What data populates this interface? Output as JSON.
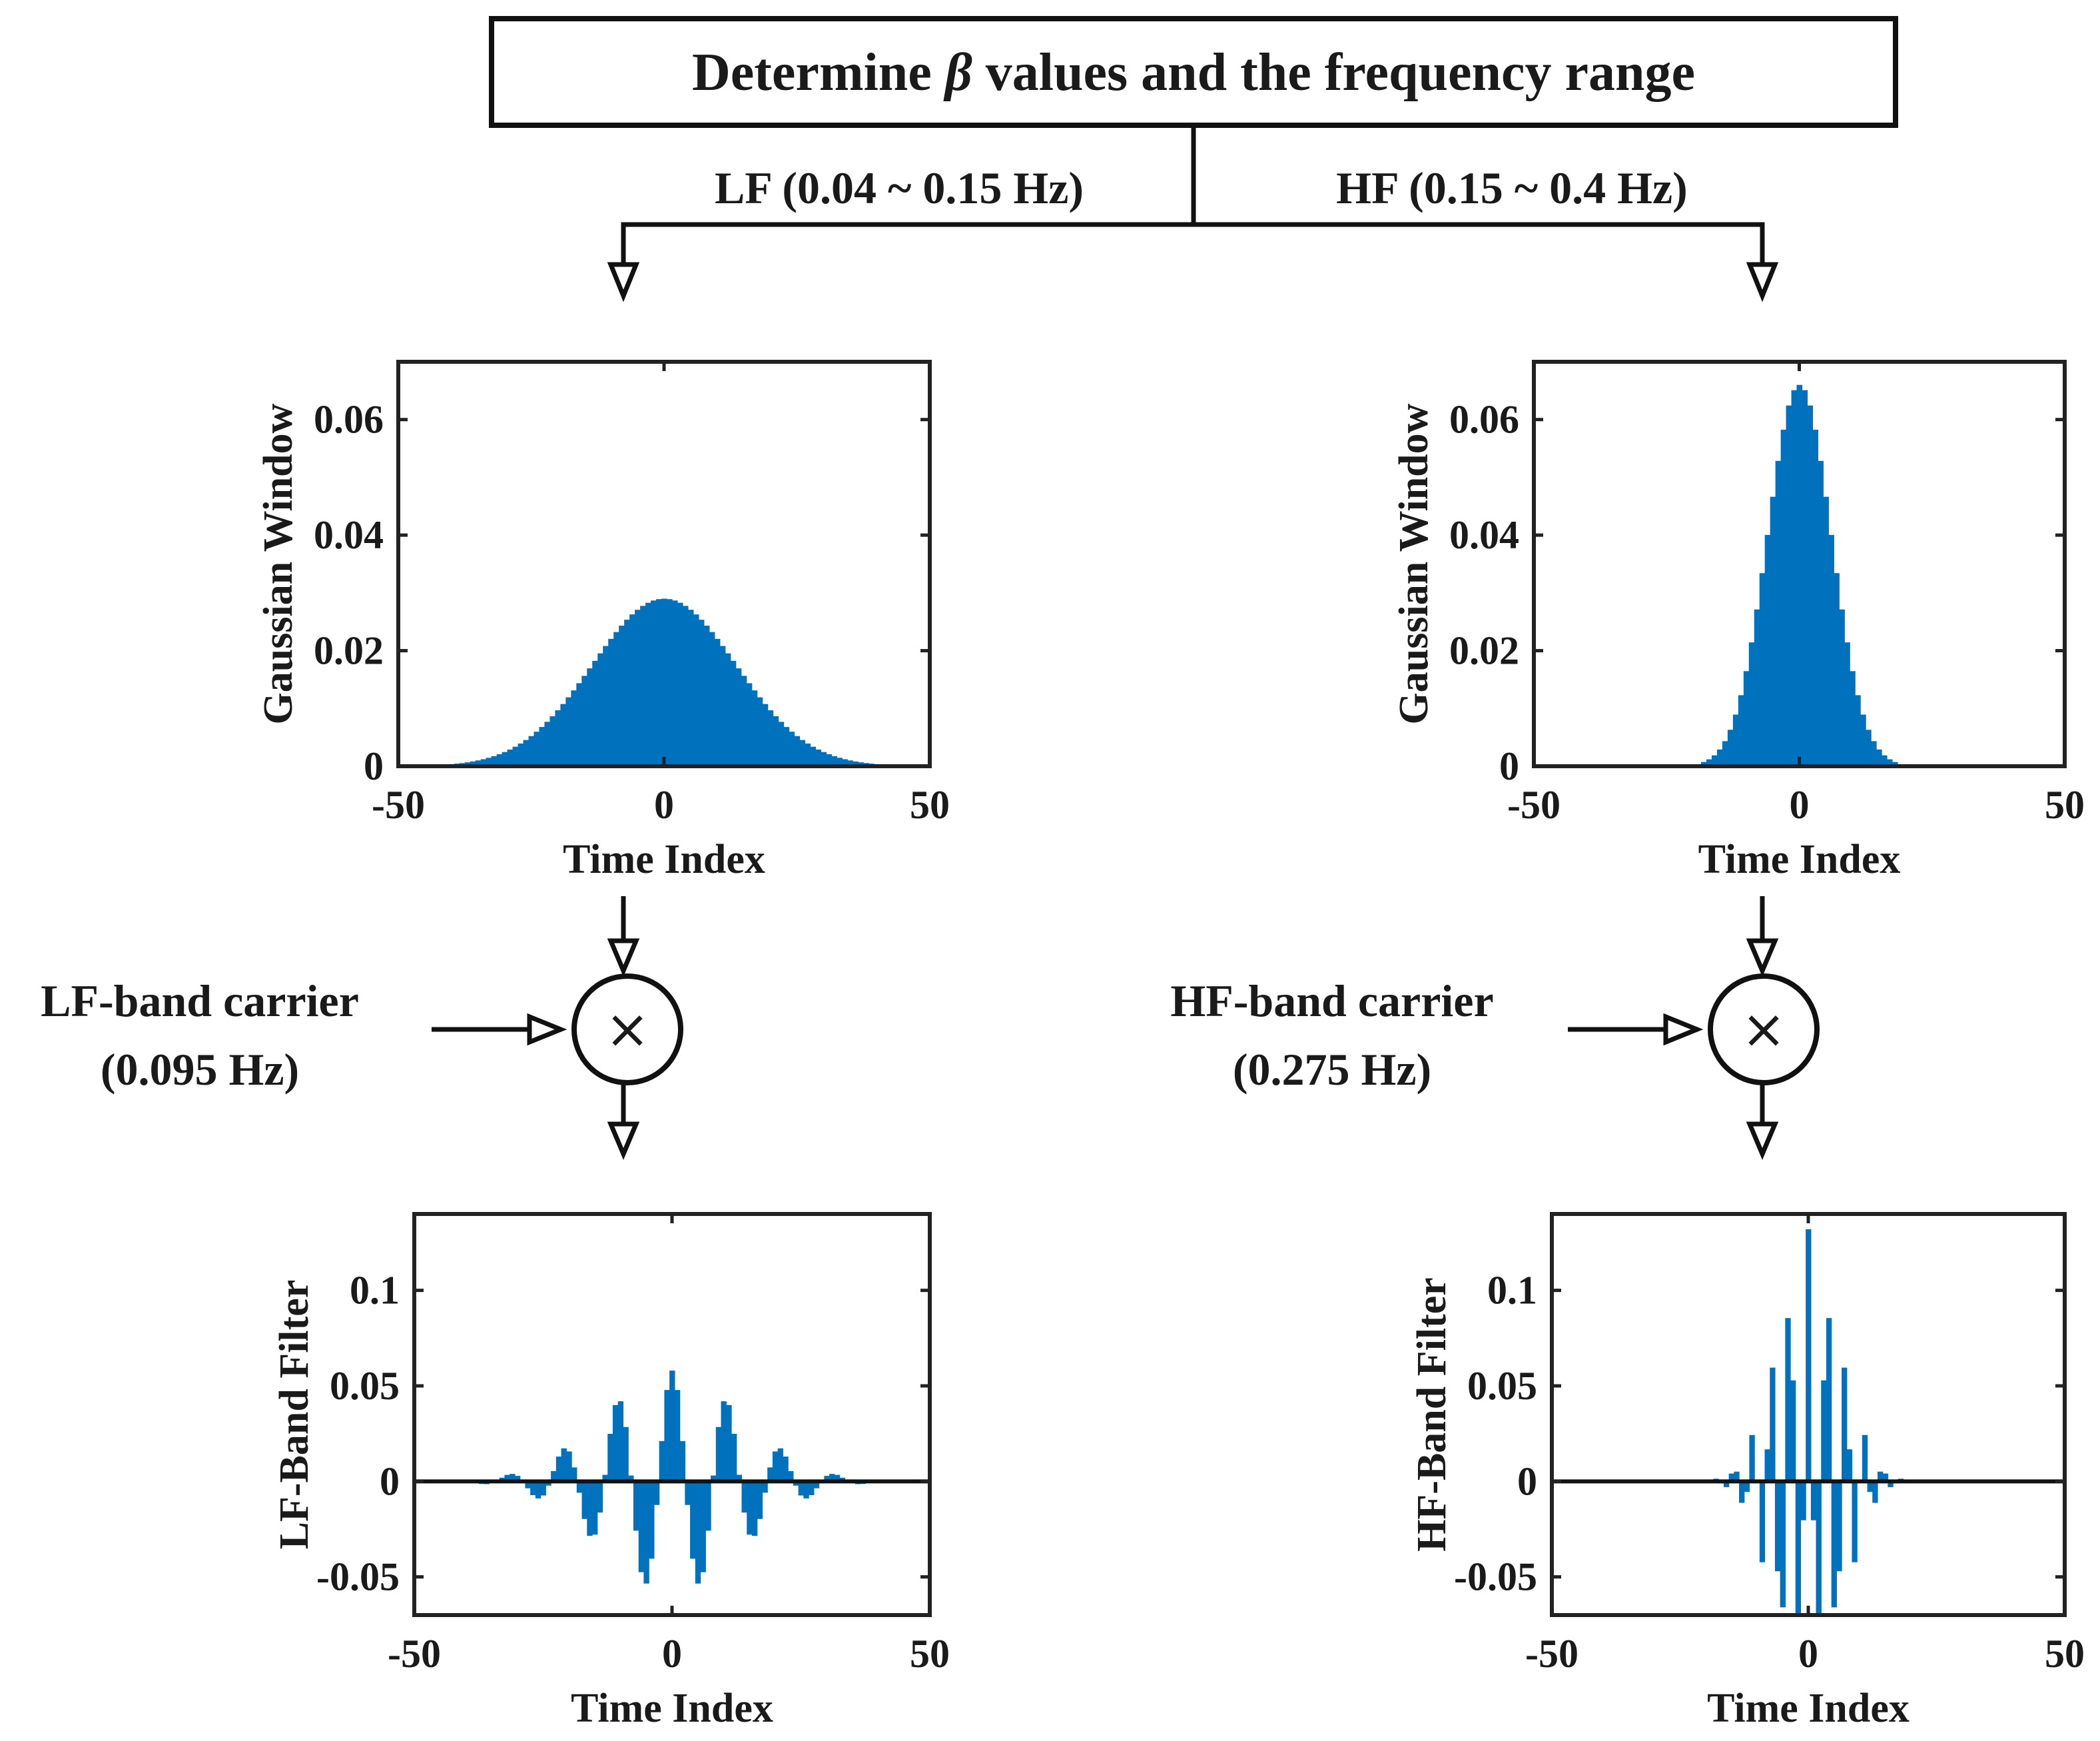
{
  "title": {
    "prefix": "Determine ",
    "symbol": "β",
    "suffix": " values and the frequency range"
  },
  "bands": {
    "lf_label": "LF (0.04 ~ 0.15 Hz)",
    "hf_label": "HF (0.15 ~ 0.4 Hz)"
  },
  "carriers": {
    "lf": {
      "name": "LF-band carrier",
      "freq": "(0.095 Hz)"
    },
    "hf": {
      "name": "HF-band carrier",
      "freq": "(0.275 Hz)"
    }
  },
  "multiplier_symbol": "×",
  "colors": {
    "bars": "#0072bd",
    "lines": "#111111",
    "background": "#ffffff"
  },
  "chart_data": [
    {
      "id": "lf-window",
      "type": "bar",
      "xlabel": "Time Index",
      "ylabel": "Gaussian Window",
      "xlim": [
        -50,
        50
      ],
      "ylim": [
        0,
        0.07
      ],
      "xticks": [
        "-50",
        "0",
        "50"
      ],
      "yticks": [
        "0",
        "0.02",
        "0.04",
        "0.06"
      ],
      "ytick_values": [
        0,
        0.02,
        0.04,
        0.06
      ],
      "x_range": [
        -40,
        40
      ],
      "amplitude": 0.029,
      "sigma": 13.5,
      "carrier_freq": null,
      "zero_line": false
    },
    {
      "id": "hf-window",
      "type": "bar",
      "xlabel": "Time Index",
      "ylabel": "Gaussian Window",
      "xlim": [
        -50,
        50
      ],
      "ylim": [
        0,
        0.07
      ],
      "xticks": [
        "-50",
        "0",
        "50"
      ],
      "yticks": [
        "0",
        "0.02",
        "0.04",
        "0.06"
      ],
      "ytick_values": [
        0,
        0.02,
        0.04,
        0.06
      ],
      "x_range": [
        -18,
        18
      ],
      "amplitude": 0.066,
      "sigma": 6.0,
      "carrier_freq": null,
      "zero_line": false
    },
    {
      "id": "lf-filter",
      "type": "bar",
      "xlabel": "Time Index",
      "ylabel": "LF-Band Filter",
      "xlim": [
        -50,
        50
      ],
      "ylim": [
        -0.07,
        0.14
      ],
      "xticks": [
        "-50",
        "0",
        "50"
      ],
      "yticks": [
        "-0.05",
        "0",
        "0.05",
        "0.1"
      ],
      "ytick_values": [
        -0.05,
        0,
        0.05,
        0.1
      ],
      "x_range": [
        -40,
        40
      ],
      "amplitude": 0.058,
      "sigma": 13.5,
      "carrier_freq": 0.095,
      "zero_line": true
    },
    {
      "id": "hf-filter",
      "type": "bar",
      "xlabel": "Time Index",
      "ylabel": "HF-Band Filter",
      "xlim": [
        -50,
        50
      ],
      "ylim": [
        -0.07,
        0.14
      ],
      "xticks": [
        "-50",
        "0",
        "50"
      ],
      "yticks": [
        "-0.05",
        "0",
        "0.05",
        "0.1"
      ],
      "ytick_values": [
        -0.05,
        0,
        0.05,
        0.1
      ],
      "x_range": [
        -20,
        20
      ],
      "amplitude": 0.132,
      "sigma": 6.0,
      "carrier_freq": 0.275,
      "zero_line": true
    }
  ]
}
